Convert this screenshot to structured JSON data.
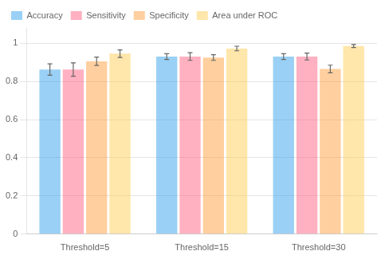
{
  "chart_data": {
    "type": "bar",
    "categories": [
      "Threshold=5",
      "Threshold=15",
      "Threshold=30"
    ],
    "series": [
      {
        "name": "Accuracy",
        "values": [
          0.862,
          0.93,
          0.93
        ],
        "errors": [
          0.03,
          0.015,
          0.015
        ]
      },
      {
        "name": "Sensitivity",
        "values": [
          0.862,
          0.93,
          0.93
        ],
        "errors": [
          0.035,
          0.02,
          0.018
        ]
      },
      {
        "name": "Specificity",
        "values": [
          0.905,
          0.925,
          0.865
        ],
        "errors": [
          0.022,
          0.015,
          0.02
        ]
      },
      {
        "name": "Area under ROC",
        "values": [
          0.945,
          0.972,
          0.985
        ],
        "errors": [
          0.02,
          0.012,
          0.008
        ]
      }
    ],
    "ylim": [
      0,
      1.08
    ],
    "yticks": [
      0,
      0.2,
      0.4,
      0.6,
      0.8,
      1
    ],
    "grid": true,
    "legend": "upper left"
  }
}
